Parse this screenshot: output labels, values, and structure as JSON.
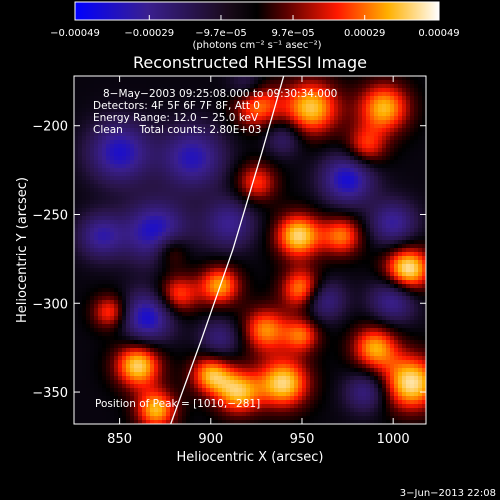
{
  "chart_data": {
    "type": "heatmap",
    "title": "Reconstructed RHESSI Image",
    "xlabel": "Heliocentric X (arcsec)",
    "ylabel": "Heliocentric Y (arcsec)",
    "xlim": [
      825,
      1018
    ],
    "ylim": [
      -368,
      -172
    ],
    "x_ticks": [
      850,
      900,
      950,
      1000
    ],
    "x_tick_labels": [
      "850",
      "900",
      "950",
      "1000"
    ],
    "y_ticks": [
      -200,
      -250,
      -300,
      -350
    ],
    "y_tick_labels": [
      "−200",
      "−250",
      "−300",
      "−350"
    ],
    "grid": false,
    "colorbar": {
      "min": -0.00049,
      "max": 0.00049,
      "ticks": [
        -0.00049,
        -0.00029,
        -9.7e-05,
        9.7e-05,
        0.00029,
        0.00049
      ],
      "tick_labels": [
        "−0.00049",
        "−0.00029",
        "−9.7e−05",
        "9.7e−05",
        "0.00029",
        "0.00049"
      ],
      "units_label": "(photons cm⁻² s⁻¹ asec⁻²)"
    },
    "annotations": {
      "time_range": "8−May−2003 09:25:08.000 to 09:30:34.000",
      "detectors": "Detectors: 4F 5F 6F 7F 8F, Att 0",
      "energy": "Energy Range: 12.0 − 25.0 keV",
      "clean": "Clean     Total counts: 2.80E+03",
      "peak": "Position of Peak = [1010,−281]"
    },
    "limb_curve": {
      "x": [
        878,
        895,
        912,
        928,
        940
      ],
      "y": [
        -368,
        -320,
        -270,
        -215,
        -172
      ]
    },
    "blobs": [
      {
        "x": 1008,
        "y": -281,
        "w": 1.0,
        "r": 9
      },
      {
        "x": 1010,
        "y": -345,
        "w": 0.95,
        "r": 11
      },
      {
        "x": 955,
        "y": -190,
        "w": 0.85,
        "r": 11
      },
      {
        "x": 995,
        "y": -190,
        "w": 0.8,
        "r": 10
      },
      {
        "x": 925,
        "y": -188,
        "w": 0.7,
        "r": 9
      },
      {
        "x": 948,
        "y": -262,
        "w": 0.9,
        "r": 9
      },
      {
        "x": 950,
        "y": -292,
        "w": 0.75,
        "r": 8
      },
      {
        "x": 950,
        "y": -318,
        "w": 0.6,
        "r": 7
      },
      {
        "x": 940,
        "y": -345,
        "w": 0.9,
        "r": 10
      },
      {
        "x": 915,
        "y": -350,
        "w": 0.8,
        "r": 9
      },
      {
        "x": 900,
        "y": -340,
        "w": 0.75,
        "r": 8
      },
      {
        "x": 860,
        "y": -335,
        "w": 0.9,
        "r": 9
      },
      {
        "x": 870,
        "y": -360,
        "w": 0.8,
        "r": 8
      },
      {
        "x": 882,
        "y": -295,
        "w": 0.6,
        "r": 8
      },
      {
        "x": 905,
        "y": -290,
        "w": 0.75,
        "r": 8
      },
      {
        "x": 930,
        "y": -315,
        "w": 0.7,
        "r": 9
      },
      {
        "x": 845,
        "y": -305,
        "w": 0.6,
        "r": 7
      },
      {
        "x": 990,
        "y": -325,
        "w": 0.75,
        "r": 9
      },
      {
        "x": 972,
        "y": -262,
        "w": 0.65,
        "r": 8
      },
      {
        "x": 985,
        "y": -212,
        "w": 0.55,
        "r": 8
      },
      {
        "x": 878,
        "y": -270,
        "w": 0.5,
        "r": 7
      },
      {
        "x": 925,
        "y": -232,
        "w": 0.55,
        "r": 8
      },
      {
        "x": 870,
        "y": -260,
        "w": -0.8,
        "r": 12
      },
      {
        "x": 850,
        "y": -215,
        "w": -0.75,
        "r": 12
      },
      {
        "x": 890,
        "y": -218,
        "w": -0.7,
        "r": 12
      },
      {
        "x": 910,
        "y": -255,
        "w": -0.55,
        "r": 10
      },
      {
        "x": 865,
        "y": -308,
        "w": -0.8,
        "r": 10
      },
      {
        "x": 840,
        "y": -262,
        "w": -0.6,
        "r": 9
      },
      {
        "x": 975,
        "y": -230,
        "w": -0.8,
        "r": 10
      },
      {
        "x": 1000,
        "y": -255,
        "w": -0.6,
        "r": 9
      },
      {
        "x": 962,
        "y": -298,
        "w": -0.55,
        "r": 8
      },
      {
        "x": 1000,
        "y": -298,
        "w": -0.6,
        "r": 9
      },
      {
        "x": 940,
        "y": -207,
        "w": -0.4,
        "r": 7
      },
      {
        "x": 985,
        "y": -350,
        "w": -0.5,
        "r": 8
      },
      {
        "x": 905,
        "y": -320,
        "w": -0.45,
        "r": 8
      },
      {
        "x": 920,
        "y": -178,
        "w": -0.4,
        "r": 7
      }
    ]
  },
  "footer": {
    "timestamp": "3−Jun−2013 22:08"
  }
}
